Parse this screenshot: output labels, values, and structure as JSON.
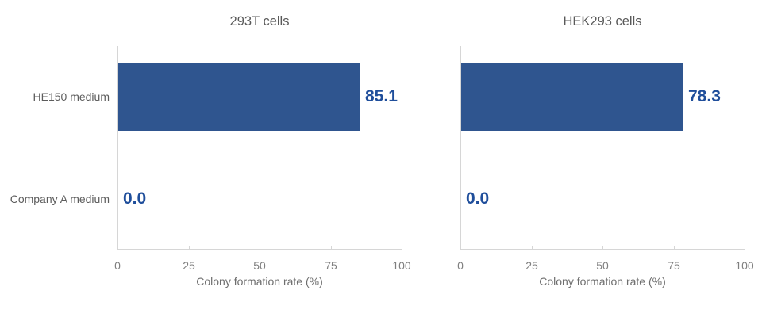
{
  "colors": {
    "bar": "#2F558F",
    "value_label": "#1F4E9B",
    "axis": "#D6D6D6",
    "title": "#595959",
    "category_label": "#5C5C5C",
    "tick_label": "#7F7F7F",
    "axis_label": "#6E6E6E"
  },
  "chart_data": [
    {
      "type": "bar",
      "orientation": "horizontal",
      "title": "293T cells",
      "categories": [
        "HE150 medium",
        "Company A medium"
      ],
      "values": [
        85.1,
        0.0
      ],
      "value_labels": [
        "85.1",
        "0.0"
      ],
      "xlabel": "Colony formation rate (%)",
      "xlim": [
        0,
        100
      ],
      "xticks": [
        0,
        25,
        50,
        75,
        100
      ],
      "grid": false,
      "legend": "none",
      "show_category_labels": true
    },
    {
      "type": "bar",
      "orientation": "horizontal",
      "title": "HEK293 cells",
      "categories": [
        "HE150 medium",
        "Company A medium"
      ],
      "values": [
        78.3,
        0.0
      ],
      "value_labels": [
        "78.3",
        "0.0"
      ],
      "xlabel": "Colony formation rate (%)",
      "xlim": [
        0,
        100
      ],
      "xticks": [
        0,
        25,
        50,
        75,
        100
      ],
      "grid": false,
      "legend": "none",
      "show_category_labels": false
    }
  ]
}
